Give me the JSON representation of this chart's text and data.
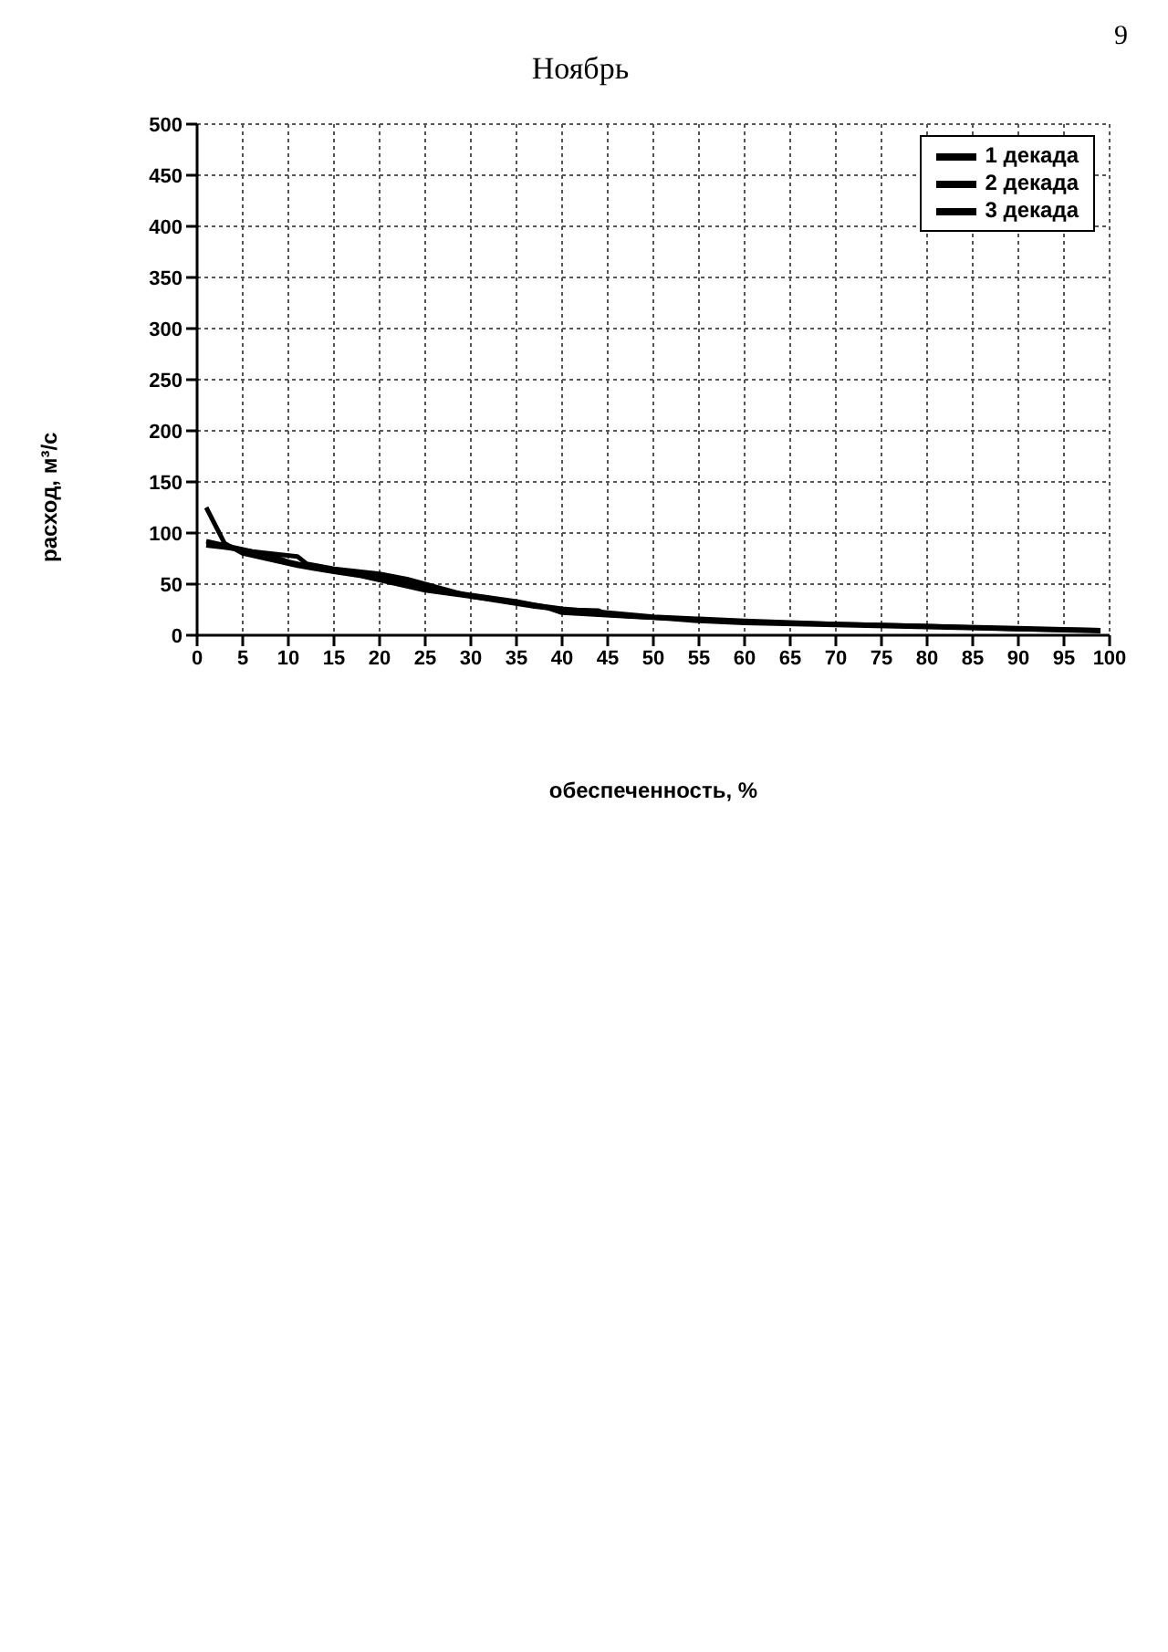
{
  "chart_data": {
    "type": "line",
    "title": "Ноябрь",
    "xlabel": "обеспеченность, %",
    "ylabel": "расход, м³/с",
    "annotations": [
      "9"
    ],
    "xlim": [
      0,
      100
    ],
    "xticks": [
      0,
      5,
      10,
      15,
      20,
      25,
      30,
      35,
      40,
      45,
      50,
      55,
      60,
      65,
      70,
      75,
      80,
      85,
      90,
      95,
      100
    ],
    "ylim": [
      0,
      500
    ],
    "yticks": [
      0,
      50,
      100,
      150,
      200,
      250,
      300,
      350,
      400,
      450,
      500
    ],
    "grid": true,
    "legend": "top right",
    "marker": "none",
    "line_style": "solid",
    "series": [
      {
        "name": "1 декада",
        "color": "#000000",
        "x": [
          1,
          3,
          5,
          8,
          11,
          13,
          15,
          18,
          22,
          25,
          30,
          35,
          40,
          45,
          50,
          55,
          60,
          70,
          80,
          90,
          99
        ],
        "values": [
          125,
          90,
          80,
          74,
          68,
          65,
          62,
          58,
          50,
          44,
          38,
          32,
          26,
          22,
          18,
          16,
          14,
          11,
          9,
          7,
          5
        ]
      },
      {
        "name": "2 декада",
        "color": "#000000",
        "x": [
          1,
          3,
          6,
          11,
          12,
          15,
          20,
          23,
          30,
          37,
          40,
          44,
          45,
          52,
          55,
          60,
          70,
          80,
          90,
          99
        ],
        "values": [
          88,
          86,
          82,
          77,
          70,
          65,
          60,
          55,
          38,
          28,
          25,
          24,
          20,
          16,
          14,
          12,
          10,
          8,
          6,
          4
        ]
      },
      {
        "name": "3 декада",
        "color": "#000000",
        "x": [
          1,
          2,
          5,
          8,
          10,
          13,
          18,
          22,
          28,
          35,
          38,
          40,
          48,
          53,
          60,
          70,
          80,
          90,
          99
        ],
        "values": [
          92,
          90,
          84,
          78,
          72,
          66,
          60,
          54,
          42,
          33,
          28,
          22,
          18,
          16,
          13,
          11,
          9,
          6,
          5
        ]
      }
    ]
  }
}
